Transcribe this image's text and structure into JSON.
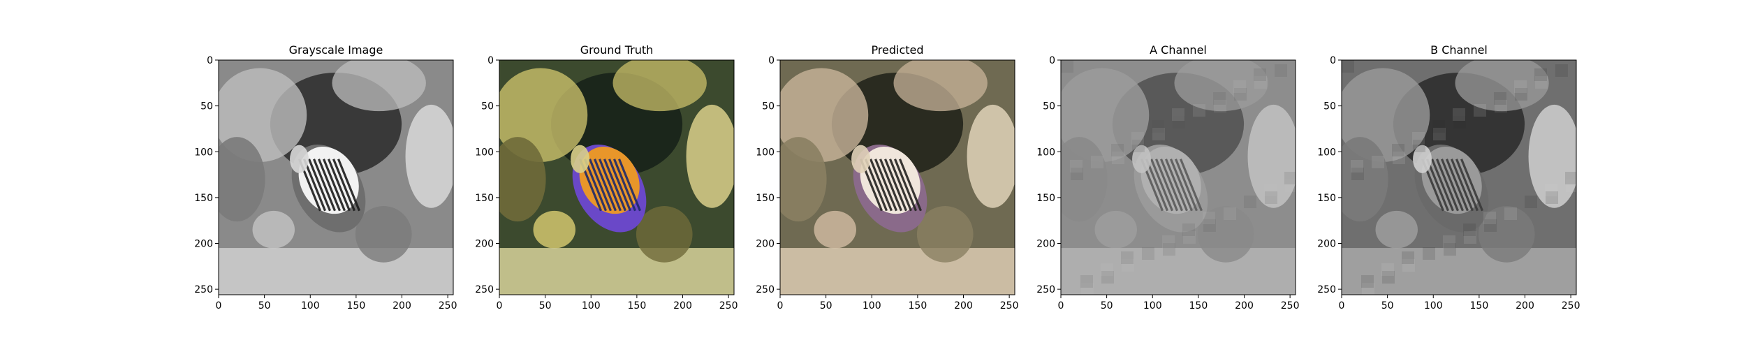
{
  "figure": {
    "background": "#ffffff"
  },
  "chart_data": [
    {
      "type": "heatmap",
      "title": "Grayscale Image",
      "content": "grayscale",
      "xlim": [
        0,
        256
      ],
      "ylim": [
        256,
        0
      ],
      "xticks": [
        0,
        50,
        100,
        150,
        200,
        250
      ],
      "yticks": [
        0,
        50,
        100,
        150,
        200,
        250
      ],
      "xlabel": "",
      "ylabel": ""
    },
    {
      "type": "heatmap",
      "title": "Ground Truth",
      "content": "color",
      "xlim": [
        0,
        256
      ],
      "ylim": [
        256,
        0
      ],
      "xticks": [
        0,
        50,
        100,
        150,
        200,
        250
      ],
      "yticks": [
        0,
        50,
        100,
        150,
        200,
        250
      ],
      "xlabel": "",
      "ylabel": ""
    },
    {
      "type": "heatmap",
      "title": "Predicted",
      "content": "sepia",
      "xlim": [
        0,
        256
      ],
      "ylim": [
        256,
        0
      ],
      "xticks": [
        0,
        50,
        100,
        150,
        200,
        250
      ],
      "yticks": [
        0,
        50,
        100,
        150,
        200,
        250
      ],
      "xlabel": "",
      "ylabel": ""
    },
    {
      "type": "heatmap",
      "title": "A Channel",
      "content": "a-channel",
      "xlim": [
        0,
        256
      ],
      "ylim": [
        256,
        0
      ],
      "xticks": [
        0,
        50,
        100,
        150,
        200,
        250
      ],
      "yticks": [
        0,
        50,
        100,
        150,
        200,
        250
      ],
      "xlabel": "",
      "ylabel": ""
    },
    {
      "type": "heatmap",
      "title": "B Channel",
      "content": "b-channel",
      "xlim": [
        0,
        256
      ],
      "ylim": [
        256,
        0
      ],
      "xticks": [
        0,
        50,
        100,
        150,
        200,
        250
      ],
      "yticks": [
        0,
        50,
        100,
        150,
        200,
        250
      ],
      "xlabel": "",
      "ylabel": ""
    }
  ]
}
